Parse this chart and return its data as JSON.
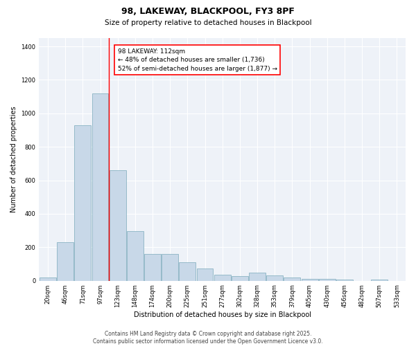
{
  "title_line1": "98, LAKEWAY, BLACKPOOL, FY3 8PF",
  "title_line2": "Size of property relative to detached houses in Blackpool",
  "xlabel": "Distribution of detached houses by size in Blackpool",
  "ylabel": "Number of detached properties",
  "annotation_text": "98 LAKEWAY: 112sqm\n← 48% of detached houses are smaller (1,736)\n52% of semi-detached houses are larger (1,877) →",
  "vline_bar_index": 3,
  "bar_color": "#c8d8e8",
  "bar_edge_color": "#7aaabb",
  "vline_color": "red",
  "background_color": "#eef2f8",
  "categories": [
    "20sqm",
    "46sqm",
    "71sqm",
    "97sqm",
    "123sqm",
    "148sqm",
    "174sqm",
    "200sqm",
    "225sqm",
    "251sqm",
    "277sqm",
    "302sqm",
    "328sqm",
    "353sqm",
    "379sqm",
    "405sqm",
    "430sqm",
    "456sqm",
    "482sqm",
    "507sqm",
    "533sqm"
  ],
  "values": [
    20,
    230,
    930,
    1120,
    660,
    295,
    160,
    160,
    110,
    75,
    35,
    28,
    50,
    30,
    18,
    10,
    10,
    5,
    0,
    5,
    0
  ],
  "ylim": [
    0,
    1450
  ],
  "yticks": [
    0,
    200,
    400,
    600,
    800,
    1000,
    1200,
    1400
  ],
  "footer_text": "Contains HM Land Registry data © Crown copyright and database right 2025.\nContains public sector information licensed under the Open Government Licence v3.0.",
  "title_fontsize": 9,
  "subtitle_fontsize": 7.5,
  "axis_label_fontsize": 7,
  "tick_fontsize": 6,
  "annotation_fontsize": 6.5
}
